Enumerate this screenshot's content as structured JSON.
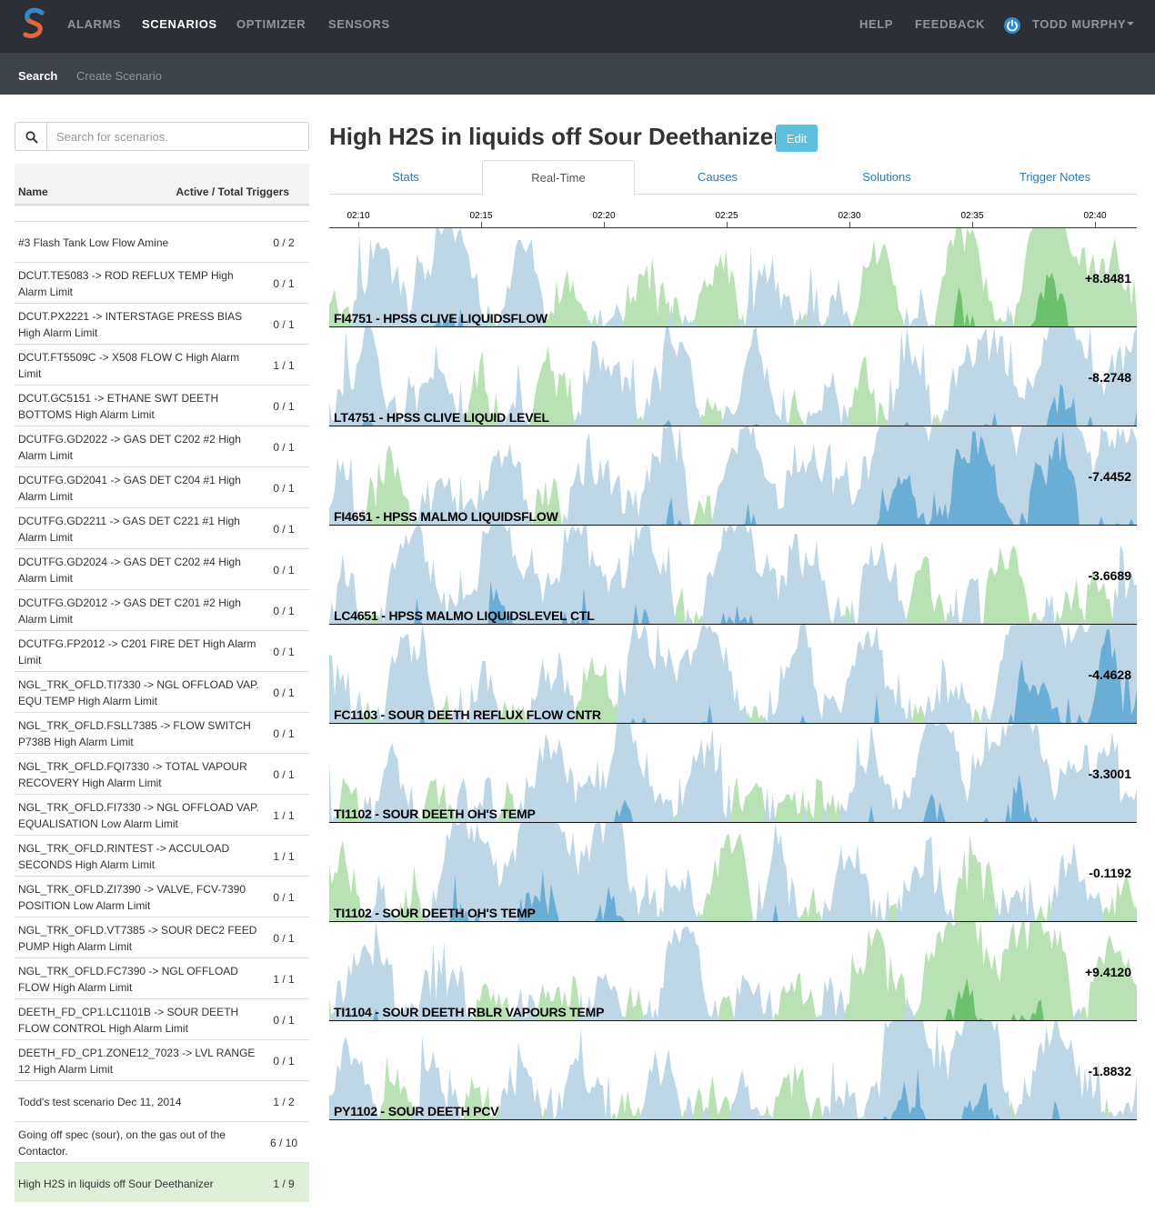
{
  "nav": {
    "brand_icon": "s-logo-icon",
    "items": [
      {
        "label": "ALARMS",
        "active": false
      },
      {
        "label": "SCENARIOS",
        "active": true
      },
      {
        "label": "OPTIMIZER",
        "active": false
      },
      {
        "label": "SENSORS",
        "active": false
      }
    ],
    "help": "HELP",
    "feedback": "FEEDBACK",
    "user_icon": "power-icon",
    "user": "TODD MURPHY"
  },
  "subnav": {
    "items": [
      {
        "label": "Search",
        "active": true
      },
      {
        "label": "Create Scenario",
        "active": false
      }
    ]
  },
  "sidebar": {
    "search_icon": "search-icon",
    "search_placeholder": "Search for scenarios.",
    "search_value": "",
    "col_name": "Name",
    "col_count": "Active / Total Triggers",
    "rows": [
      {
        "name": "#3 Flash Tank Low Flow Amine",
        "count": "0 / 2"
      },
      {
        "name": "DCUT.TE5083 -> ROD REFLUX TEMP High Alarm Limit",
        "count": "0 / 1"
      },
      {
        "name": "DCUT.PX2221 -> INTERSTAGE PRESS BIAS High Alarm Limit",
        "count": "0 / 1"
      },
      {
        "name": "DCUT.FT5509C -> X508 FLOW C High Alarm Limit",
        "count": "1 / 1"
      },
      {
        "name": "DCUT.GC5151 -> ETHANE SWT DEETH BOTTOMS High Alarm Limit",
        "count": "0 / 1"
      },
      {
        "name": "DCUTFG.GD2022 -> GAS DET C202 #2 High Alarm Limit",
        "count": "0 / 1"
      },
      {
        "name": "DCUTFG.GD2041 -> GAS DET C204 #1 High Alarm Limit",
        "count": "0 / 1"
      },
      {
        "name": "DCUTFG.GD2211 -> GAS DET C221 #1 High Alarm Limit",
        "count": "0 / 1"
      },
      {
        "name": "DCUTFG.GD2024 -> GAS DET C202 #4 High Alarm Limit",
        "count": "0 / 1"
      },
      {
        "name": "DCUTFG.GD2012 -> GAS DET C201 #2 High Alarm Limit",
        "count": "0 / 1"
      },
      {
        "name": "DCUTFG.FP2012 -> C201 FIRE DET High Alarm Limit",
        "count": "0 / 1"
      },
      {
        "name": "NGL_TRK_OFLD.TI7330 -> NGL OFFLOAD VAP. EQU TEMP High Alarm Limit",
        "count": "0 / 1"
      },
      {
        "name": "NGL_TRK_OFLD.FSLL7385 -> FLOW SWITCH P738B High Alarm Limit",
        "count": "0 / 1"
      },
      {
        "name": "NGL_TRK_OFLD.FQI7330 -> TOTAL VAPOUR RECOVERY High Alarm Limit",
        "count": "0 / 1"
      },
      {
        "name": "NGL_TRK_OFLD.FI7330 -> NGL OFFLOAD VAP. EQUALISATION Low Alarm Limit",
        "count": "1 / 1"
      },
      {
        "name": "NGL_TRK_OFLD.RINTEST -> ACCULOAD SECONDS High Alarm Limit",
        "count": "1 / 1"
      },
      {
        "name": "NGL_TRK_OFLD.ZI7390 -> VALVE, FCV-7390 POSITION Low Alarm Limit",
        "count": "0 / 1"
      },
      {
        "name": "NGL_TRK_OFLD.VT7385 -> SOUR DEC2 FEED PUMP High Alarm Limit",
        "count": "0 / 1"
      },
      {
        "name": "NGL_TRK_OFLD.FC7390 -> NGL OFFLOAD FLOW High Alarm Limit",
        "count": "1 / 1"
      },
      {
        "name": "DEETH_FD_CP1.LC1101B -> SOUR DEETH FLOW CONTROL High Alarm Limit",
        "count": "0 / 1"
      },
      {
        "name": "DEETH_FD_CP1.ZONE12_7023 -> LVL RANGE 12 High Alarm Limit",
        "count": "0 / 1"
      },
      {
        "name": "Todd's test scenario Dec 11, 2014",
        "count": "1 / 2"
      },
      {
        "name": "Going off spec (sour), on the gas out of the Contactor.",
        "count": "6 / 10"
      },
      {
        "name": "High H2S in liquids off Sour Deethanizer",
        "count": "1 / 9",
        "selected": true
      }
    ]
  },
  "main": {
    "title": "High H2S in liquids off Sour Deethanizer",
    "edit_label": "Edit",
    "tabs": [
      {
        "label": "Stats",
        "active": false
      },
      {
        "label": "Real-Time",
        "active": true
      },
      {
        "label": "Causes",
        "active": false
      },
      {
        "label": "Solutions",
        "active": false
      },
      {
        "label": "Trigger Notes",
        "active": false
      }
    ]
  },
  "chart_data": {
    "type": "area",
    "style": "horizon",
    "x_ticks": [
      "02:10",
      "02:15",
      "02:20",
      "02:25",
      "02:30",
      "02:35",
      "02:40"
    ],
    "colors": {
      "positive_1": "#b9e2b4",
      "positive_2": "#6cc16c",
      "negative_1": "#bdd7e7",
      "negative_2": "#6aaed6"
    },
    "series": [
      {
        "name": "FI4751 - HPSS CLIVE LIQUIDSFLOW",
        "value": "+8.8481"
      },
      {
        "name": "LT4751 - HPSS CLIVE LIQUID LEVEL",
        "value": "-8.2748"
      },
      {
        "name": "FI4651 - HPSS MALMO LIQUIDSFLOW",
        "value": "-7.4452"
      },
      {
        "name": "LC4651 - HPSS MALMO LIQUIDSLEVEL CTL",
        "value": "-3.6689"
      },
      {
        "name": "FC1103 - SOUR DEETH REFLUX FLOW CNTR",
        "value": "-4.4628"
      },
      {
        "name": "TI1102 - SOUR DEETH OH'S TEMP",
        "value": "-3.3001"
      },
      {
        "name": "TI1102 - SOUR DEETH OH'S TEMP",
        "value": "-0.1192"
      },
      {
        "name": "TI1104 - SOUR DEETH RBLR VAPOURS TEMP",
        "value": "+9.4120"
      },
      {
        "name": "PY1102 - SOUR DEETH PCV",
        "value": "-1.8832"
      }
    ]
  }
}
